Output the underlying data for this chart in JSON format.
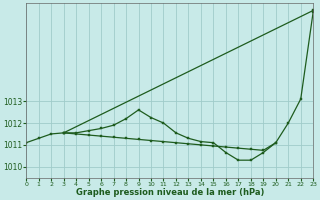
{
  "bg_color": "#c8eae8",
  "grid_color": "#a0ccca",
  "line_color": "#1e5c1e",
  "xlabel": "Graphe pression niveau de la mer (hPa)",
  "xlim": [
    0,
    23
  ],
  "ylim": [
    1009.5,
    1017.5
  ],
  "ytick_vals": [
    1010,
    1011,
    1012,
    1013
  ],
  "xtick_vals": [
    0,
    1,
    2,
    3,
    4,
    5,
    6,
    7,
    8,
    9,
    10,
    11,
    12,
    13,
    14,
    15,
    16,
    17,
    18,
    19,
    20,
    21,
    22,
    23
  ],
  "line1_x": [
    0,
    1,
    2,
    3,
    4,
    5,
    6,
    7,
    8,
    9,
    10,
    11,
    12,
    13,
    14,
    15,
    16,
    17,
    18,
    19,
    20,
    21,
    22,
    23
  ],
  "line1_y": [
    1011.1,
    1011.3,
    1011.5,
    1011.55,
    1011.55,
    1011.65,
    1011.75,
    1011.9,
    1012.2,
    1012.6,
    1012.25,
    1012.0,
    1011.55,
    1011.3,
    1011.15,
    1011.1,
    1010.65,
    1010.3,
    1010.3,
    1010.65,
    1011.1,
    1012.0,
    1013.1,
    1017.1
  ],
  "line2_x": [
    3,
    4,
    5,
    6,
    7,
    8,
    9,
    10,
    11,
    12,
    13,
    14,
    15,
    16,
    17,
    18,
    19,
    20
  ],
  "line2_y": [
    1011.55,
    1011.5,
    1011.45,
    1011.4,
    1011.35,
    1011.3,
    1011.25,
    1011.2,
    1011.15,
    1011.1,
    1011.05,
    1011.0,
    1010.95,
    1010.9,
    1010.85,
    1010.8,
    1010.75,
    1011.1
  ],
  "line3_x": [
    3,
    23
  ],
  "line3_y": [
    1011.55,
    1017.15
  ]
}
